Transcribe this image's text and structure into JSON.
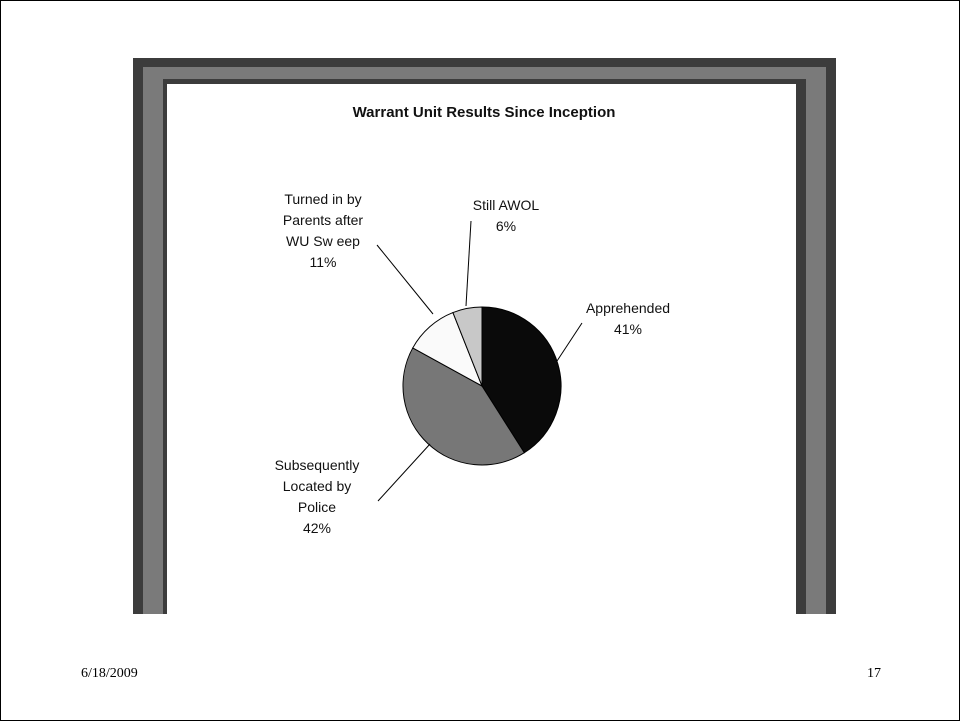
{
  "slide": {
    "date": "6/18/2009",
    "page_number": "17"
  },
  "chart_data": {
    "type": "pie",
    "title": "Warrant Unit Results Since Inception",
    "start_angle_deg": 0,
    "direction": "clockwise",
    "slices": [
      {
        "label_lines": [
          "Apprehended",
          "41%"
        ],
        "label": "Apprehended",
        "value": 41,
        "color": "#0a0a0a"
      },
      {
        "label_lines": [
          "Subsequently",
          "Located by",
          "Police",
          "42%"
        ],
        "label": "Subsequently Located by Police",
        "value": 42,
        "color": "#777777"
      },
      {
        "label_lines": [
          "Turned in by",
          "Parents after",
          "WU Sw eep",
          "11%"
        ],
        "label": "Turned in by Parents after WU Sw eep",
        "value": 11,
        "color": "#fafafa"
      },
      {
        "label_lines": [
          "Still AWOL",
          "6%"
        ],
        "label": "Still AWOL",
        "value": 6,
        "color": "#c8c8c8"
      }
    ]
  }
}
